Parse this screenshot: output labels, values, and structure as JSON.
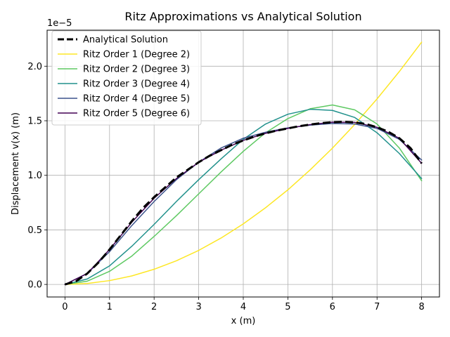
{
  "chart_data": {
    "type": "line",
    "title": "Ritz Approximations vs Analytical Solution",
    "xlabel": "x (m)",
    "ylabel": "Displacement v(x) (m)",
    "y_scale_label": "1e−5",
    "xlim": [
      -0.4,
      8.4
    ],
    "ylim": [
      -0.115,
      2.33
    ],
    "xticks": [
      0,
      1,
      2,
      3,
      4,
      5,
      6,
      7,
      8
    ],
    "xtick_labels": [
      "0",
      "1",
      "2",
      "3",
      "4",
      "5",
      "6",
      "7",
      "8"
    ],
    "yticks": [
      0.0,
      0.5,
      1.0,
      1.5,
      2.0
    ],
    "ytick_labels": [
      "0.0",
      "0.5",
      "1.0",
      "1.5",
      "2.0"
    ],
    "grid": true,
    "legend_position": "top-left",
    "series": [
      {
        "name": "Analytical Solution",
        "color": "#000000",
        "dashed": true,
        "width": 3,
        "x": [
          0,
          0.25,
          0.5,
          0.75,
          1,
          1.25,
          1.5,
          1.75,
          2,
          2.25,
          2.5,
          2.75,
          3,
          3.25,
          3.5,
          3.75,
          4,
          4.25,
          4.5,
          4.75,
          5,
          5.25,
          5.5,
          5.75,
          6,
          6.25,
          6.5,
          6.75,
          7,
          7.25,
          7.5,
          7.75,
          8
        ],
        "y": [
          0,
          0.03,
          0.1,
          0.2,
          0.32,
          0.45,
          0.58,
          0.7,
          0.8,
          0.89,
          0.98,
          1.05,
          1.12,
          1.18,
          1.23,
          1.28,
          1.32,
          1.355,
          1.385,
          1.41,
          1.43,
          1.45,
          1.465,
          1.478,
          1.487,
          1.49,
          1.485,
          1.47,
          1.44,
          1.4,
          1.34,
          1.25,
          1.11
        ]
      },
      {
        "name": "Ritz Order 1 (Degree 2)",
        "color": "#fde725",
        "dashed": false,
        "width": 1.5,
        "x": [
          0,
          0.5,
          1,
          1.5,
          2,
          2.5,
          3,
          3.5,
          4,
          4.5,
          5,
          5.5,
          6,
          6.5,
          7,
          7.5,
          8
        ],
        "y": [
          0,
          0.009,
          0.035,
          0.078,
          0.139,
          0.217,
          0.312,
          0.425,
          0.555,
          0.703,
          0.867,
          1.05,
          1.249,
          1.466,
          1.7,
          1.951,
          2.22
        ]
      },
      {
        "name": "Ritz Order 2 (Degree 3)",
        "color": "#5ec962",
        "dashed": false,
        "width": 1.5,
        "x": [
          0,
          0.5,
          1,
          1.5,
          2,
          2.5,
          3,
          3.5,
          4,
          4.5,
          5,
          5.5,
          6,
          6.5,
          7,
          7.5,
          8
        ],
        "y": [
          0,
          0.03,
          0.12,
          0.26,
          0.44,
          0.63,
          0.83,
          1.03,
          1.22,
          1.39,
          1.52,
          1.61,
          1.645,
          1.6,
          1.47,
          1.25,
          0.95
        ]
      },
      {
        "name": "Ritz Order 3 (Degree 4)",
        "color": "#21918c",
        "dashed": false,
        "width": 1.5,
        "x": [
          0,
          0.5,
          1,
          1.5,
          2,
          2.5,
          3,
          3.5,
          4,
          4.5,
          5,
          5.5,
          6,
          6.5,
          7,
          7.5,
          8
        ],
        "y": [
          0,
          0.05,
          0.17,
          0.35,
          0.55,
          0.76,
          0.96,
          1.15,
          1.33,
          1.47,
          1.56,
          1.605,
          1.595,
          1.53,
          1.39,
          1.2,
          0.97
        ]
      },
      {
        "name": "Ritz Order 4 (Degree 5)",
        "color": "#3b528b",
        "dashed": false,
        "width": 1.5,
        "x": [
          0,
          0.5,
          1,
          1.5,
          2,
          2.5,
          3,
          3.5,
          4,
          4.5,
          5,
          5.5,
          6,
          6.5,
          7,
          7.5,
          8
        ],
        "y": [
          0,
          0.1,
          0.3,
          0.54,
          0.76,
          0.96,
          1.12,
          1.25,
          1.34,
          1.395,
          1.435,
          1.46,
          1.475,
          1.47,
          1.43,
          1.33,
          1.14
        ]
      },
      {
        "name": "Ritz Order 5 (Degree 6)",
        "color": "#440154",
        "dashed": false,
        "width": 1.5,
        "x": [
          0,
          0.5,
          1,
          1.5,
          2,
          2.5,
          3,
          3.5,
          4,
          4.5,
          5,
          5.5,
          6,
          6.5,
          7,
          7.5,
          8
        ],
        "y": [
          0,
          0.1,
          0.32,
          0.57,
          0.79,
          0.97,
          1.12,
          1.23,
          1.32,
          1.385,
          1.43,
          1.465,
          1.487,
          1.485,
          1.44,
          1.34,
          1.11
        ]
      }
    ]
  }
}
